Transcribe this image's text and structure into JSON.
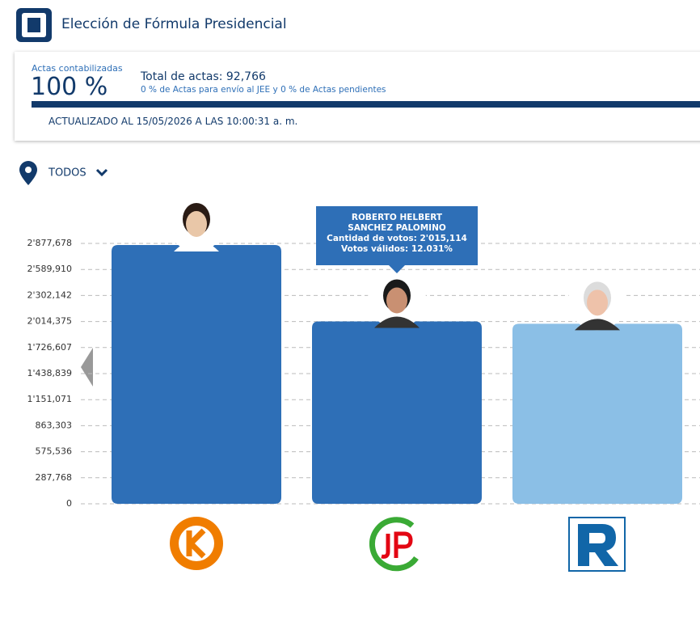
{
  "header": {
    "title": "Elección de Fórmula Presidencial"
  },
  "summary": {
    "actas_label": "Actas contabilizadas",
    "actas_percent": "100 %",
    "total": "Total de actas: 92,766",
    "detail": "0 % de Actas para envío al JEE y 0 % de Actas pendientes",
    "updated": "ACTUALIZADO AL 15/05/2026 A LAS 10:00:31 a. m."
  },
  "filter": {
    "label": "TODOS"
  },
  "chart_data": {
    "type": "bar",
    "values": [
      2860000,
      2015114,
      1990000
    ],
    "colors": [
      "#2e6fb7",
      "#2e6fb7",
      "#8bbfe6"
    ],
    "ylim": [
      0,
      2877678
    ],
    "yticks": [
      0,
      {
        "value": 287767.8,
        "label": "287,768"
      },
      {
        "value": 575535.6,
        "label": "575,536"
      },
      {
        "value": 863303.4,
        "label": "863,303"
      },
      {
        "value": 1151071.2,
        "label": "1'151,071"
      },
      {
        "value": 1438839,
        "label": "1'438,839"
      },
      {
        "value": 1726606.8,
        "label": "1'726,607"
      },
      {
        "value": 2014374.6,
        "label": "2'014,375"
      },
      {
        "value": 2302142.4,
        "label": "2'302,142"
      },
      {
        "value": 2589910.2,
        "label": "2'589,910"
      },
      {
        "value": 2877678,
        "label": "2'877,678"
      }
    ],
    "grid": true,
    "tooltip": {
      "name": "ROBERTO HELBERT SANCHEZ PALOMINO",
      "votes": "Cantidad de votos: 2'015,114",
      "valid": "Votos válidos: 12.031%"
    }
  }
}
